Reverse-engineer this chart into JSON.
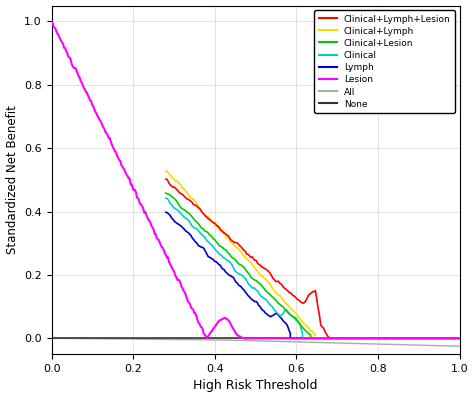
{
  "title": "",
  "xlabel": "High Risk Threshold",
  "ylabel": "Standardized Net Benefit",
  "xlim": [
    0.0,
    1.0
  ],
  "ylim": [
    -0.05,
    1.05
  ],
  "xticks": [
    0.0,
    0.2,
    0.4,
    0.6,
    0.8,
    1.0
  ],
  "yticks": [
    0.0,
    0.2,
    0.4,
    0.6,
    0.8,
    1.0
  ],
  "line_colors": {
    "Clinical+Lymph+Lesion": "#FF0000",
    "Clinical+Lymph": "#FFD700",
    "Clinical+Lesion": "#00CC00",
    "Clinical": "#00CCCC",
    "Lymph": "#0000CC",
    "Lesion": "#FF00FF",
    "All": "#AAAAAA",
    "None": "#333333"
  },
  "background_color": "#ffffff",
  "grid_color": "#cccccc"
}
